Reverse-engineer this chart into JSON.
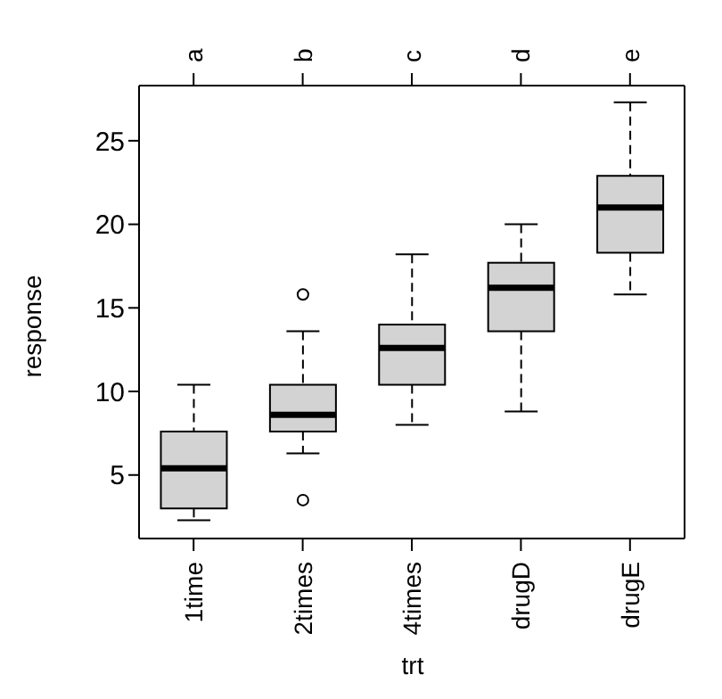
{
  "chart_data": {
    "type": "box",
    "xlabel": "trt",
    "ylabel": "response",
    "categories": [
      "1time",
      "2times",
      "4times",
      "drugD",
      "drugE"
    ],
    "boxes": [
      {
        "low": 2.3,
        "q1": 3.0,
        "median": 5.4,
        "q3": 7.6,
        "high": 10.4
      },
      {
        "low": 6.3,
        "q1": 7.6,
        "median": 8.6,
        "q3": 10.4,
        "high": 13.6,
        "outliers": [
          15.8,
          3.5
        ]
      },
      {
        "low": 8.0,
        "q1": 10.4,
        "median": 12.6,
        "q3": 14.0,
        "high": 18.2
      },
      {
        "low": 8.8,
        "q1": 13.6,
        "median": 16.2,
        "q3": 17.7,
        "high": 20.0
      },
      {
        "low": 15.8,
        "q1": 18.3,
        "median": 21.0,
        "q3": 22.9,
        "high": 27.3
      }
    ],
    "color": "#d3d3d3",
    "ylim": [
      1.2,
      28.3
    ],
    "yticks": [
      5,
      10,
      15,
      20,
      25
    ],
    "annotations": [
      {
        "text": "a",
        "x": "1time"
      },
      {
        "text": "b",
        "x": "2times"
      },
      {
        "text": "c",
        "x": "4times"
      },
      {
        "text": "d",
        "x": "drugD"
      },
      {
        "text": "e",
        "x": "drugE"
      }
    ],
    "grid": false,
    "legend": false
  }
}
